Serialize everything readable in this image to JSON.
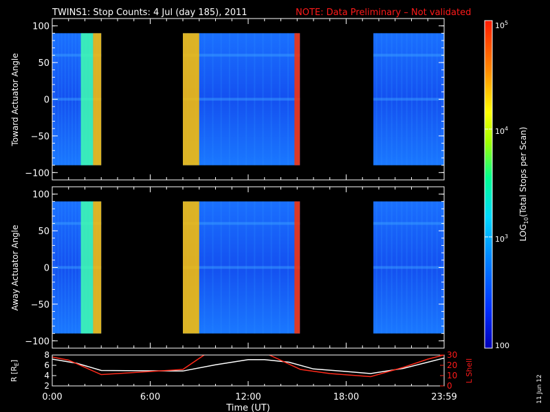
{
  "title": {
    "main": "TWINS1: Stop Counts:  4 Jul (day 185), 2011",
    "note": "NOTE: Data Preliminary – Not validated"
  },
  "colorbar": {
    "label_main": "LOG",
    "label_sub": "10",
    "label_rest": "(Total Stops per Scan)",
    "tick_1e5_base": "10",
    "tick_1e5_exp": "5",
    "tick_1e4_base": "10",
    "tick_1e4_exp": "4",
    "tick_1e3_base": "10",
    "tick_1e3_exp": "3",
    "tick_100": "100"
  },
  "date_stamp": "11 Jun 12",
  "chart_data": [
    {
      "type": "heatmap",
      "ylabel": "Toward Actuator Angle",
      "ylim": [
        -110,
        110
      ],
      "yticks": [
        "100",
        "50",
        "0",
        "−50",
        "−100"
      ],
      "x_range_hours": [
        0,
        24
      ],
      "color_scale": "log10",
      "color_range": [
        100,
        100000
      ],
      "data_extent_deg": [
        -90,
        90
      ],
      "segments": [
        {
          "start": "00:00",
          "end": "03:00"
        },
        {
          "start": "08:00",
          "end": "15:10"
        },
        {
          "start": "19:40",
          "end": "23:59"
        }
      ],
      "bright_bands": [
        {
          "start": "01:45",
          "end": "02:30",
          "level": "cyan-green"
        },
        {
          "start": "02:30",
          "end": "03:00",
          "level": "yellow-orange"
        },
        {
          "start": "08:00",
          "end": "09:00",
          "level": "yellow-orange"
        },
        {
          "start": "14:50",
          "end": "15:10",
          "level": "red"
        }
      ]
    },
    {
      "type": "heatmap",
      "ylabel": "Away Actuator Angle",
      "ylim": [
        -110,
        110
      ],
      "yticks": [
        "100",
        "50",
        "0",
        "−50",
        "−100"
      ],
      "x_range_hours": [
        0,
        24
      ],
      "color_scale": "log10",
      "color_range": [
        100,
        100000
      ],
      "data_extent_deg": [
        -90,
        90
      ],
      "segments": [
        {
          "start": "00:00",
          "end": "03:00"
        },
        {
          "start": "08:00",
          "end": "15:10"
        },
        {
          "start": "19:40",
          "end": "23:59"
        }
      ],
      "bright_bands": [
        {
          "start": "01:45",
          "end": "02:30",
          "level": "cyan-green"
        },
        {
          "start": "02:30",
          "end": "03:00",
          "level": "yellow-orange"
        },
        {
          "start": "08:00",
          "end": "09:00",
          "level": "yellow-orange"
        },
        {
          "start": "14:50",
          "end": "15:10",
          "level": "red"
        }
      ]
    },
    {
      "type": "line",
      "ylabel_left": "R [R",
      "ylabel_left_sub": "E",
      "ylabel_left_end": "]",
      "ylabel_right": "L Shell",
      "ylim_left": [
        2,
        8
      ],
      "ylim_right": [
        0,
        30
      ],
      "yticks_left": [
        "2",
        "4",
        "6",
        "8"
      ],
      "yticks_right": [
        "0",
        "10",
        "20",
        "30"
      ],
      "xlabel": "Time (UT)",
      "xticks": [
        "0:00",
        "6:00",
        "12:00",
        "18:00",
        "23:59"
      ],
      "series": [
        {
          "name": "R",
          "axis": "left",
          "color": "#ffffff",
          "x": [
            0,
            1.5,
            3,
            8,
            10,
            12,
            13,
            14.5,
            16,
            18,
            19.5,
            21.5,
            24
          ],
          "y": [
            7.2,
            6.4,
            5.0,
            4.9,
            6.1,
            7.1,
            7.1,
            6.6,
            5.3,
            4.8,
            4.4,
            5.4,
            7.4
          ]
        },
        {
          "name": "L Shell",
          "axis": "right",
          "color": "#ff2a1a",
          "x": [
            0,
            1,
            3,
            8,
            9.3,
            9.6,
            12.5,
            13.3,
            15.2,
            17,
            19.5,
            21.5,
            23,
            24
          ],
          "y": [
            28,
            25,
            11,
            16,
            30,
            34,
            34,
            30,
            16,
            12,
            9,
            18,
            26,
            30
          ]
        }
      ]
    }
  ]
}
